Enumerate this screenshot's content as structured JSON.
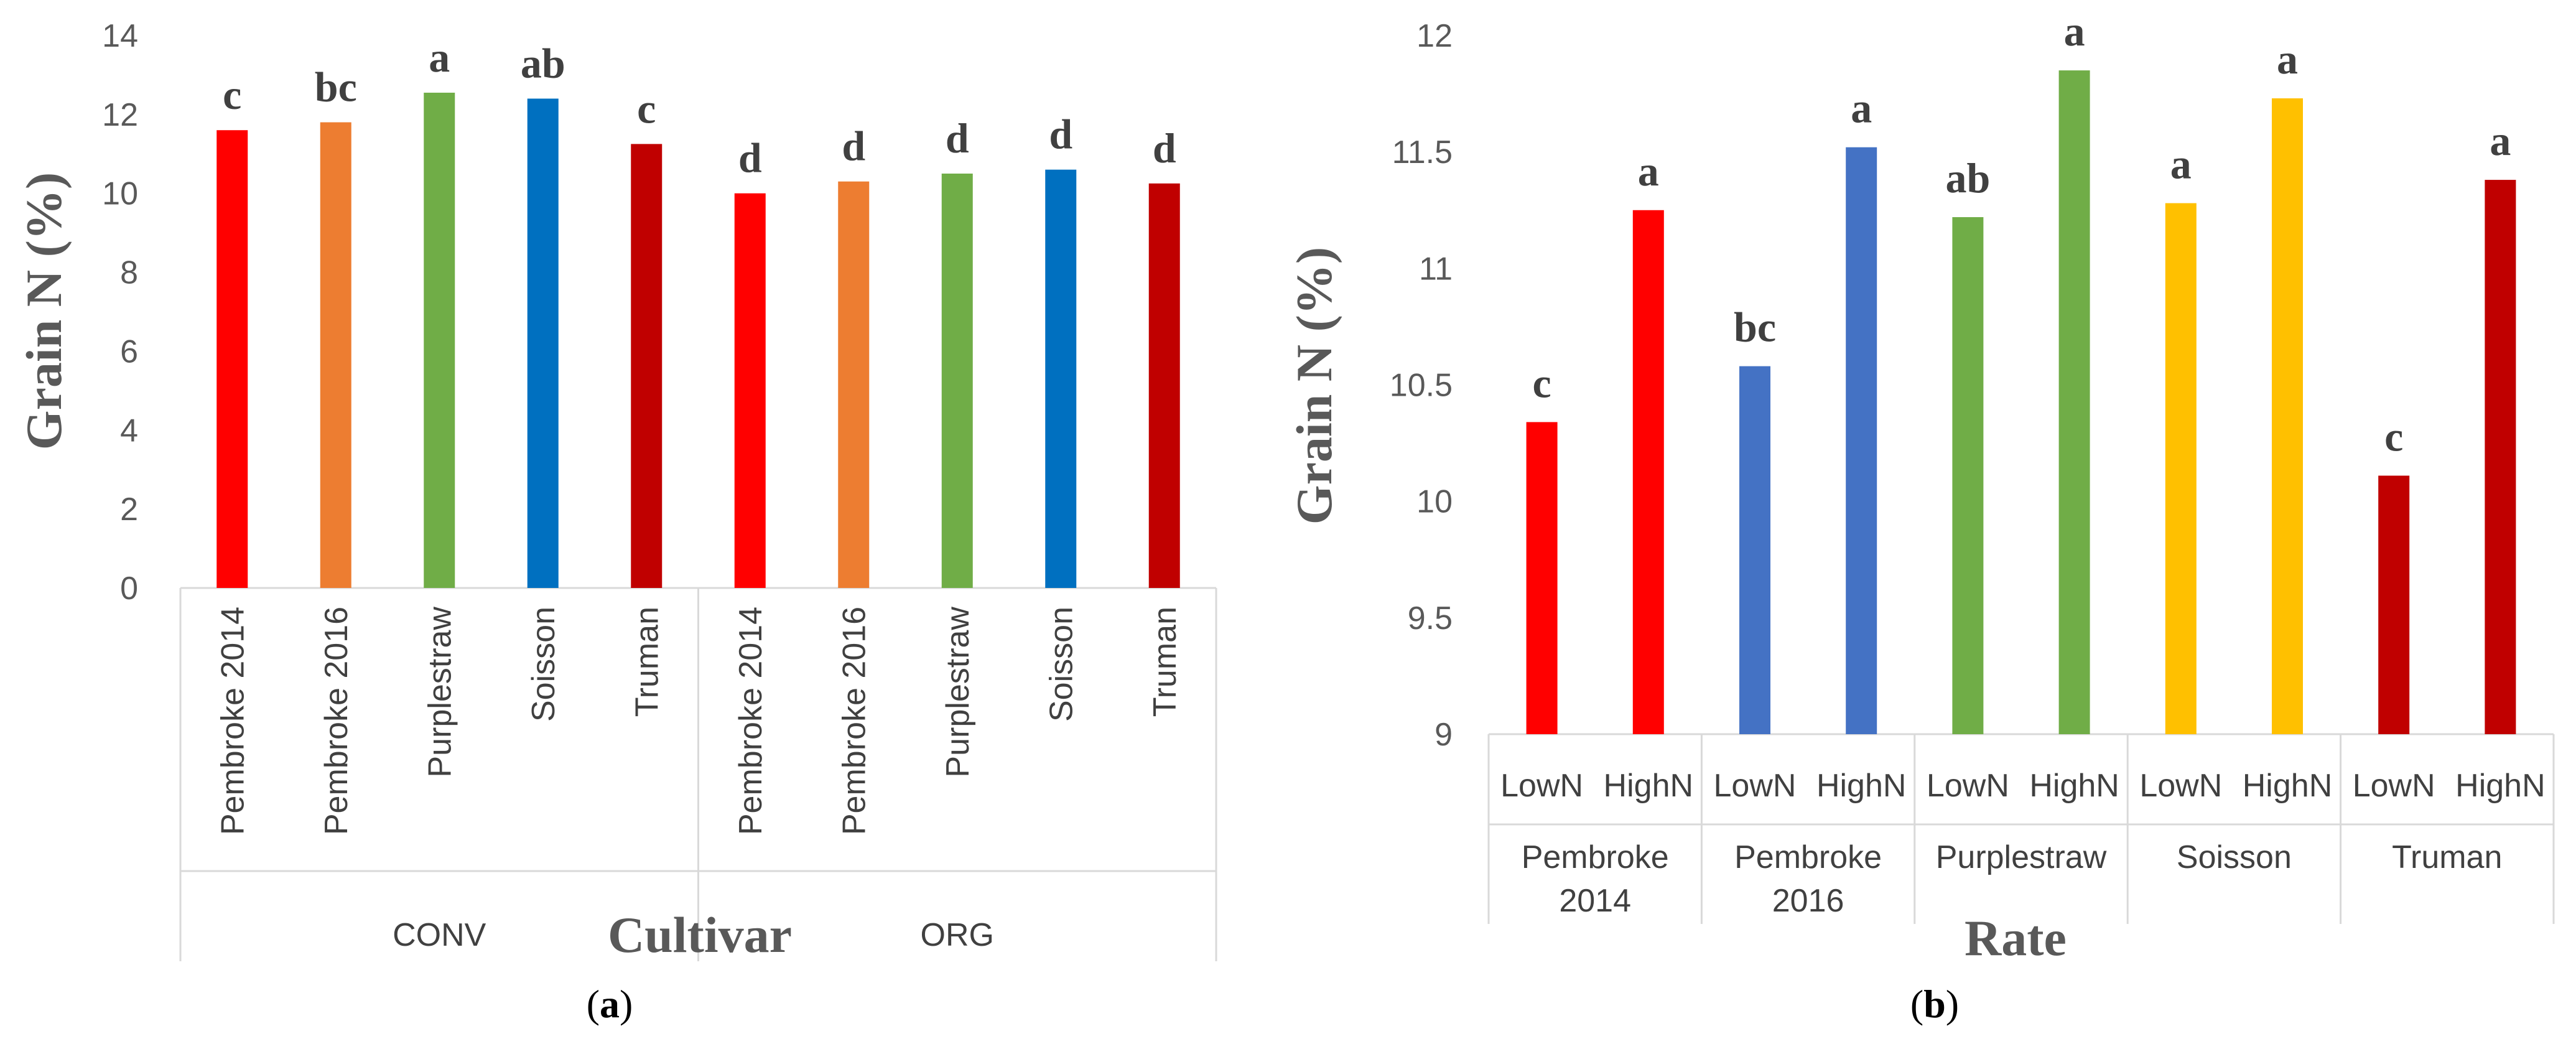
{
  "chart_data": [
    {
      "type": "bar",
      "panel_label": "a",
      "xlabel": "Cultivar",
      "ylabel": "Grain N (%)",
      "ylim": [
        0,
        14
      ],
      "yticks": [
        "0",
        "2",
        "4",
        "6",
        "8",
        "10",
        "12",
        "14"
      ],
      "groups": [
        {
          "name": "CONV",
          "bars": [
            {
              "category": "Pembroke 2014",
              "value": 11.6,
              "letter": "c",
              "color": "#ff0000"
            },
            {
              "category": "Pembroke 2016",
              "value": 11.8,
              "letter": "bc",
              "color": "#ed7d31"
            },
            {
              "category": "Purplestraw",
              "value": 12.55,
              "letter": "a",
              "color": "#70ad47"
            },
            {
              "category": "Soisson",
              "value": 12.4,
              "letter": "ab",
              "color": "#0070c0"
            },
            {
              "category": "Truman",
              "value": 11.25,
              "letter": "c",
              "color": "#c00000"
            }
          ]
        },
        {
          "name": "ORG",
          "bars": [
            {
              "category": "Pembroke 2014",
              "value": 10.0,
              "letter": "d",
              "color": "#ff0000"
            },
            {
              "category": "Pembroke 2016",
              "value": 10.3,
              "letter": "d",
              "color": "#ed7d31"
            },
            {
              "category": "Purplestraw",
              "value": 10.5,
              "letter": "d",
              "color": "#70ad47"
            },
            {
              "category": "Soisson",
              "value": 10.6,
              "letter": "d",
              "color": "#0070c0"
            },
            {
              "category": "Truman",
              "value": 10.25,
              "letter": "d",
              "color": "#c00000"
            }
          ]
        }
      ]
    },
    {
      "type": "bar",
      "panel_label": "b",
      "xlabel": "Rate",
      "ylabel": "Grain N (%)",
      "ylim": [
        9,
        12
      ],
      "yticks": [
        "9",
        "9.5",
        "10",
        "10.5",
        "11",
        "11.5",
        "12"
      ],
      "groups": [
        {
          "name_lines": [
            "Pembroke",
            "2014"
          ],
          "bars": [
            {
              "category": "LowN",
              "value": 10.34,
              "letter": "c",
              "color": "#ff0000"
            },
            {
              "category": "HighN",
              "value": 11.25,
              "letter": "a",
              "color": "#ff0000"
            }
          ]
        },
        {
          "name_lines": [
            "Pembroke",
            "2016"
          ],
          "bars": [
            {
              "category": "LowN",
              "value": 10.58,
              "letter": "bc",
              "color": "#4472c4"
            },
            {
              "category": "HighN",
              "value": 11.52,
              "letter": "a",
              "color": "#4472c4"
            }
          ]
        },
        {
          "name_lines": [
            "Purplestraw"
          ],
          "bars": [
            {
              "category": "LowN",
              "value": 11.22,
              "letter": "ab",
              "color": "#70ad47"
            },
            {
              "category": "HighN",
              "value": 11.85,
              "letter": "a",
              "color": "#70ad47"
            }
          ]
        },
        {
          "name_lines": [
            "Soisson"
          ],
          "bars": [
            {
              "category": "LowN",
              "value": 11.28,
              "letter": "a",
              "color": "#ffc000"
            },
            {
              "category": "HighN",
              "value": 11.73,
              "letter": "a",
              "color": "#ffc000"
            }
          ]
        },
        {
          "name_lines": [
            "Truman"
          ],
          "bars": [
            {
              "category": "LowN",
              "value": 10.11,
              "letter": "c",
              "color": "#c00000"
            },
            {
              "category": "HighN",
              "value": 11.38,
              "letter": "a",
              "color": "#c00000"
            }
          ]
        }
      ]
    }
  ]
}
